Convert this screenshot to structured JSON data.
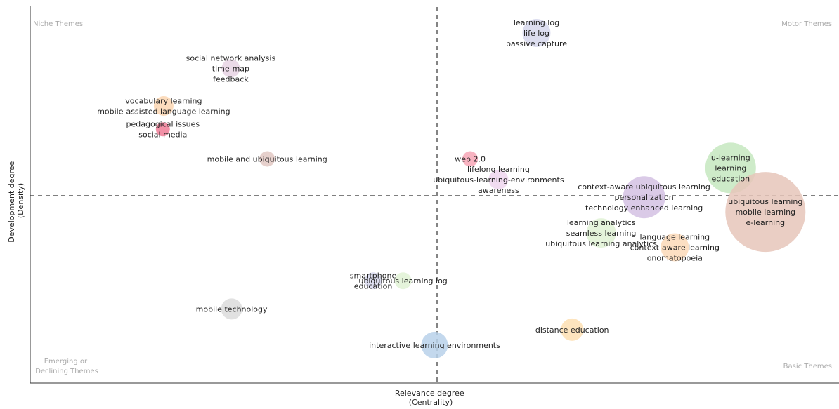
{
  "chart_data": {
    "type": "scatter",
    "title": "",
    "xlabel": [
      "Relevance degree",
      "(Centrality)"
    ],
    "ylabel": [
      "Development degree",
      "(Density)"
    ],
    "grid": false,
    "legend": "none",
    "quadrants": {
      "top_left": [
        "Niche Themes"
      ],
      "top_right": [
        "Motor Themes"
      ],
      "bottom_left": [
        "Emerging or",
        "Declining Themes"
      ],
      "bottom_right": [
        "Basic Themes"
      ]
    },
    "clusters": [
      {
        "x": 0.248,
        "y": 0.837,
        "size": 13,
        "color": "#E8D3E4",
        "terms": [
          "social network analysis",
          "time-map",
          "feedback"
        ]
      },
      {
        "x": 0.626,
        "y": 0.931,
        "size": 20,
        "color": "#D6D7EC",
        "terms": [
          "learning log",
          "life log",
          "passive capture"
        ]
      },
      {
        "x": 0.165,
        "y": 0.737,
        "size": 14,
        "color": "#FBD6B2",
        "terms": [
          "vocabulary learning",
          "mobile-assisted language learning"
        ]
      },
      {
        "x": 0.164,
        "y": 0.675,
        "size": 10,
        "color": "#F07C97",
        "terms": [
          "pedagogical issues",
          "social media"
        ]
      },
      {
        "x": 0.293,
        "y": 0.596,
        "size": 11,
        "color": "#E2C8C3",
        "terms": [
          "mobile and ubiquitous learning"
        ]
      },
      {
        "x": 0.544,
        "y": 0.596,
        "size": 11,
        "color": "#F7A6B6",
        "terms": [
          "web 2.0"
        ]
      },
      {
        "x": 0.866,
        "y": 0.572,
        "size": 36,
        "color": "#C5E8BF",
        "terms": [
          "u-learning",
          "learning",
          "education"
        ]
      },
      {
        "x": 0.579,
        "y": 0.541,
        "size": 14,
        "color": "#EFD6EF",
        "terms": [
          "lifelong learning",
          "ubiquitous-learning-environments",
          "awareness"
        ]
      },
      {
        "x": 0.759,
        "y": 0.494,
        "size": 30,
        "color": "#D4C1E3",
        "terms": [
          "context-aware ubiquitous learning",
          "personalization",
          "technology enhanced learning"
        ]
      },
      {
        "x": 0.909,
        "y": 0.455,
        "size": 57,
        "color": "#E6C6BA",
        "terms": [
          "ubiquitous learning",
          "mobile learning",
          "e-learning"
        ]
      },
      {
        "x": 0.706,
        "y": 0.399,
        "size": 21,
        "color": "#E0F2D5",
        "terms": [
          "learning analytics",
          "seamless learning",
          "ubiquitous learning analytics"
        ]
      },
      {
        "x": 0.797,
        "y": 0.361,
        "size": 20,
        "color": "#FCD9B9",
        "terms": [
          "language learning",
          "context-aware learning",
          "onomatopoeia"
        ]
      },
      {
        "x": 0.424,
        "y": 0.272,
        "size": 12,
        "color": "#D6D7EC",
        "terms": [
          "smartphone",
          "education"
        ]
      },
      {
        "x": 0.461,
        "y": 0.272,
        "size": 12,
        "color": "#E0F2D5",
        "terms": [
          "ubiquitous learning log"
        ]
      },
      {
        "x": 0.249,
        "y": 0.197,
        "size": 15,
        "color": "#DCDCDC",
        "terms": [
          "mobile technology"
        ]
      },
      {
        "x": 0.67,
        "y": 0.142,
        "size": 16,
        "color": "#FDDFB3",
        "terms": [
          "distance education"
        ]
      },
      {
        "x": 0.5,
        "y": 0.101,
        "size": 19,
        "color": "#B8D1EA",
        "terms": [
          "interactive learning environments"
        ]
      }
    ]
  }
}
